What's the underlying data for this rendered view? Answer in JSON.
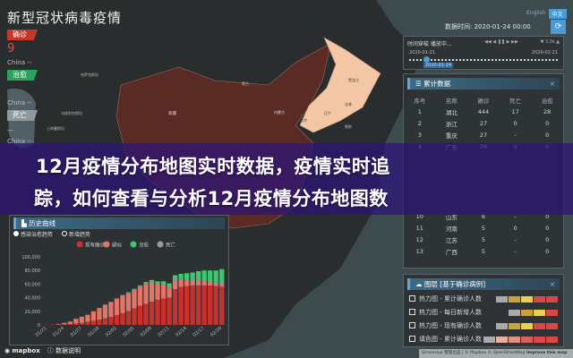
{
  "app": {
    "title": "新型冠状病毒疫情"
  },
  "left_stats": {
    "confirmed_label": "确诊",
    "confirmed_value": "9",
    "confirmed_region": "China --",
    "cured_label": "治愈",
    "cured_region": "China --",
    "death_label": "死亡",
    "death_value": "--",
    "death_region": "China --"
  },
  "banner": {
    "line1": "12月疫情分布地图实时数据，疫情实时追",
    "line2": "踪，如何查看与分析12月疫情分布地图数"
  },
  "lang": {
    "english": "English",
    "chinese": "中文"
  },
  "data_time": {
    "label": "数据时间:",
    "value": "2020-01-24 00:00"
  },
  "timeline": {
    "label": "时间穿梭 播放中...",
    "controls": "◀◀ ◀ ❚❚ ▶ ▶▶",
    "speed": "▼ 3.0s ▲",
    "start": "2020-01-21",
    "end": "2020-02-21",
    "current": "2020-01-24",
    "progress": 0.1
  },
  "table": {
    "title": "累计数据",
    "columns": [
      "序号",
      "名称",
      "确诊",
      "死亡",
      "治愈"
    ],
    "rows": [
      [
        "1",
        "湖北",
        "444",
        "17",
        "28"
      ],
      [
        "2",
        "浙江",
        "27",
        "0",
        "0"
      ],
      [
        "3",
        "重庆",
        "27",
        "-",
        "0"
      ],
      [
        "4",
        "广东",
        "26",
        "0",
        "0"
      ],
      [
        "",
        "",
        "",
        "",
        ""
      ],
      [
        "",
        "",
        "",
        "",
        ""
      ],
      [
        "",
        "",
        "",
        "",
        ""
      ],
      [
        "",
        "",
        "",
        "",
        ""
      ],
      [
        "",
        "",
        "",
        "",
        ""
      ],
      [
        "10",
        "山东",
        "6",
        "-",
        "0"
      ],
      [
        "11",
        "河南",
        "5",
        "0",
        "0"
      ],
      [
        "12",
        "江苏",
        "5",
        "-",
        "0"
      ],
      [
        "13",
        "广西",
        "5",
        "-",
        "0"
      ]
    ]
  },
  "layers": {
    "title": "图层 [基于确诊病例]",
    "items": [
      "热力图 - 累计确诊人数",
      "热力图 - 每日新增人数",
      "热力图 - 现有确诊人数",
      "填色图 - 累计确诊人数"
    ]
  },
  "history": {
    "title": "历史曲线",
    "radio1": "感染治愈趋势",
    "radio2": "新增趋势"
  },
  "map_labels": {
    "kz": "哈萨克斯坦",
    "uz": "乌兹别克斯坦",
    "tm": "土库曼斯坦",
    "xj": "新疆",
    "mn": "蒙古",
    "nm": "内蒙古",
    "hlj": "黑龙江",
    "jl": "吉林",
    "ln": "辽宁",
    "bj": "北京",
    "hb": "河北",
    "kp": "朝鲜"
  },
  "footer": {
    "mapbox": "mapbox",
    "data_note": "数据说明",
    "attribution": "Simonsaja 整理出品 | © Mapbox © OpenStreetMap",
    "improve": "Improve this map"
  },
  "colors": {
    "existing": "#c8302c",
    "suspected": "#e27468",
    "cured": "#3cc86c",
    "dead": "#9a9a9a",
    "china": "#5a2b24",
    "northeast": "#f3c7a5"
  },
  "chart_data": {
    "type": "bar",
    "stacked": true,
    "categories": [
      "01/21",
      "01/22",
      "01/23",
      "01/24",
      "01/25",
      "01/26",
      "01/27",
      "01/28",
      "01/29",
      "01/30",
      "01/31",
      "02/01",
      "02/02",
      "02/03",
      "02/04",
      "02/05",
      "02/06",
      "02/07",
      "02/08",
      "02/09",
      "02/10",
      "02/11",
      "02/12",
      "02/13",
      "02/14",
      "02/15",
      "02/16",
      "02/17",
      "02/18",
      "02/19",
      "02/20"
    ],
    "xticks": [
      "01/21",
      "01/24",
      "01/27",
      "01/30",
      "02/02",
      "02/05",
      "02/08",
      "02/11",
      "02/14",
      "02/17",
      "02/20"
    ],
    "yticks": [
      "0",
      "20,000",
      "40,000",
      "60,000",
      "80,000",
      "100,000"
    ],
    "ylim": [
      0,
      100000
    ],
    "legend_position": "top",
    "series": [
      {
        "name": "现有确诊",
        "values": [
          300,
          400,
          600,
          800,
          1300,
          2000,
          2800,
          4500,
          6000,
          7800,
          9700,
          11800,
          14400,
          17200,
          20400,
          24300,
          28000,
          31000,
          34000,
          37000,
          38800,
          40000,
          52500,
          56000,
          57000,
          58000,
          58000,
          58000,
          57800,
          57000,
          56000
        ]
      },
      {
        "name": "疑似",
        "values": [
          0,
          100,
          900,
          2150,
          3620,
          6900,
          9070,
          10330,
          13690,
          16790,
          19750,
          21490,
          23680,
          25710,
          26140,
          26860,
          27780,
          29190,
          28500,
          22700,
          19900,
          14800,
          13120,
          10000,
          8350,
          6430,
          6630,
          5700,
          4080,
          2760,
          3640
        ]
      },
      {
        "name": "死亡",
        "values": [
          0,
          0,
          0,
          50,
          80,
          100,
          130,
          170,
          210,
          260,
          300,
          360,
          420,
          490,
          560,
          640,
          720,
          810,
          900,
          1000,
          1100,
          1200,
          1380,
          1500,
          1650,
          1770,
          1870,
          2000,
          2120,
          2240,
          2360
        ]
      },
      {
        "name": "治愈",
        "values": [
          0,
          0,
          0,
          0,
          0,
          0,
          0,
          0,
          100,
          150,
          250,
          350,
          500,
          600,
          900,
          1200,
          1500,
          2000,
          2600,
          3300,
          4200,
          5000,
          6000,
          7500,
          9000,
          10800,
          12500,
          14300,
          16000,
          18000,
          20000
        ]
      }
    ]
  }
}
